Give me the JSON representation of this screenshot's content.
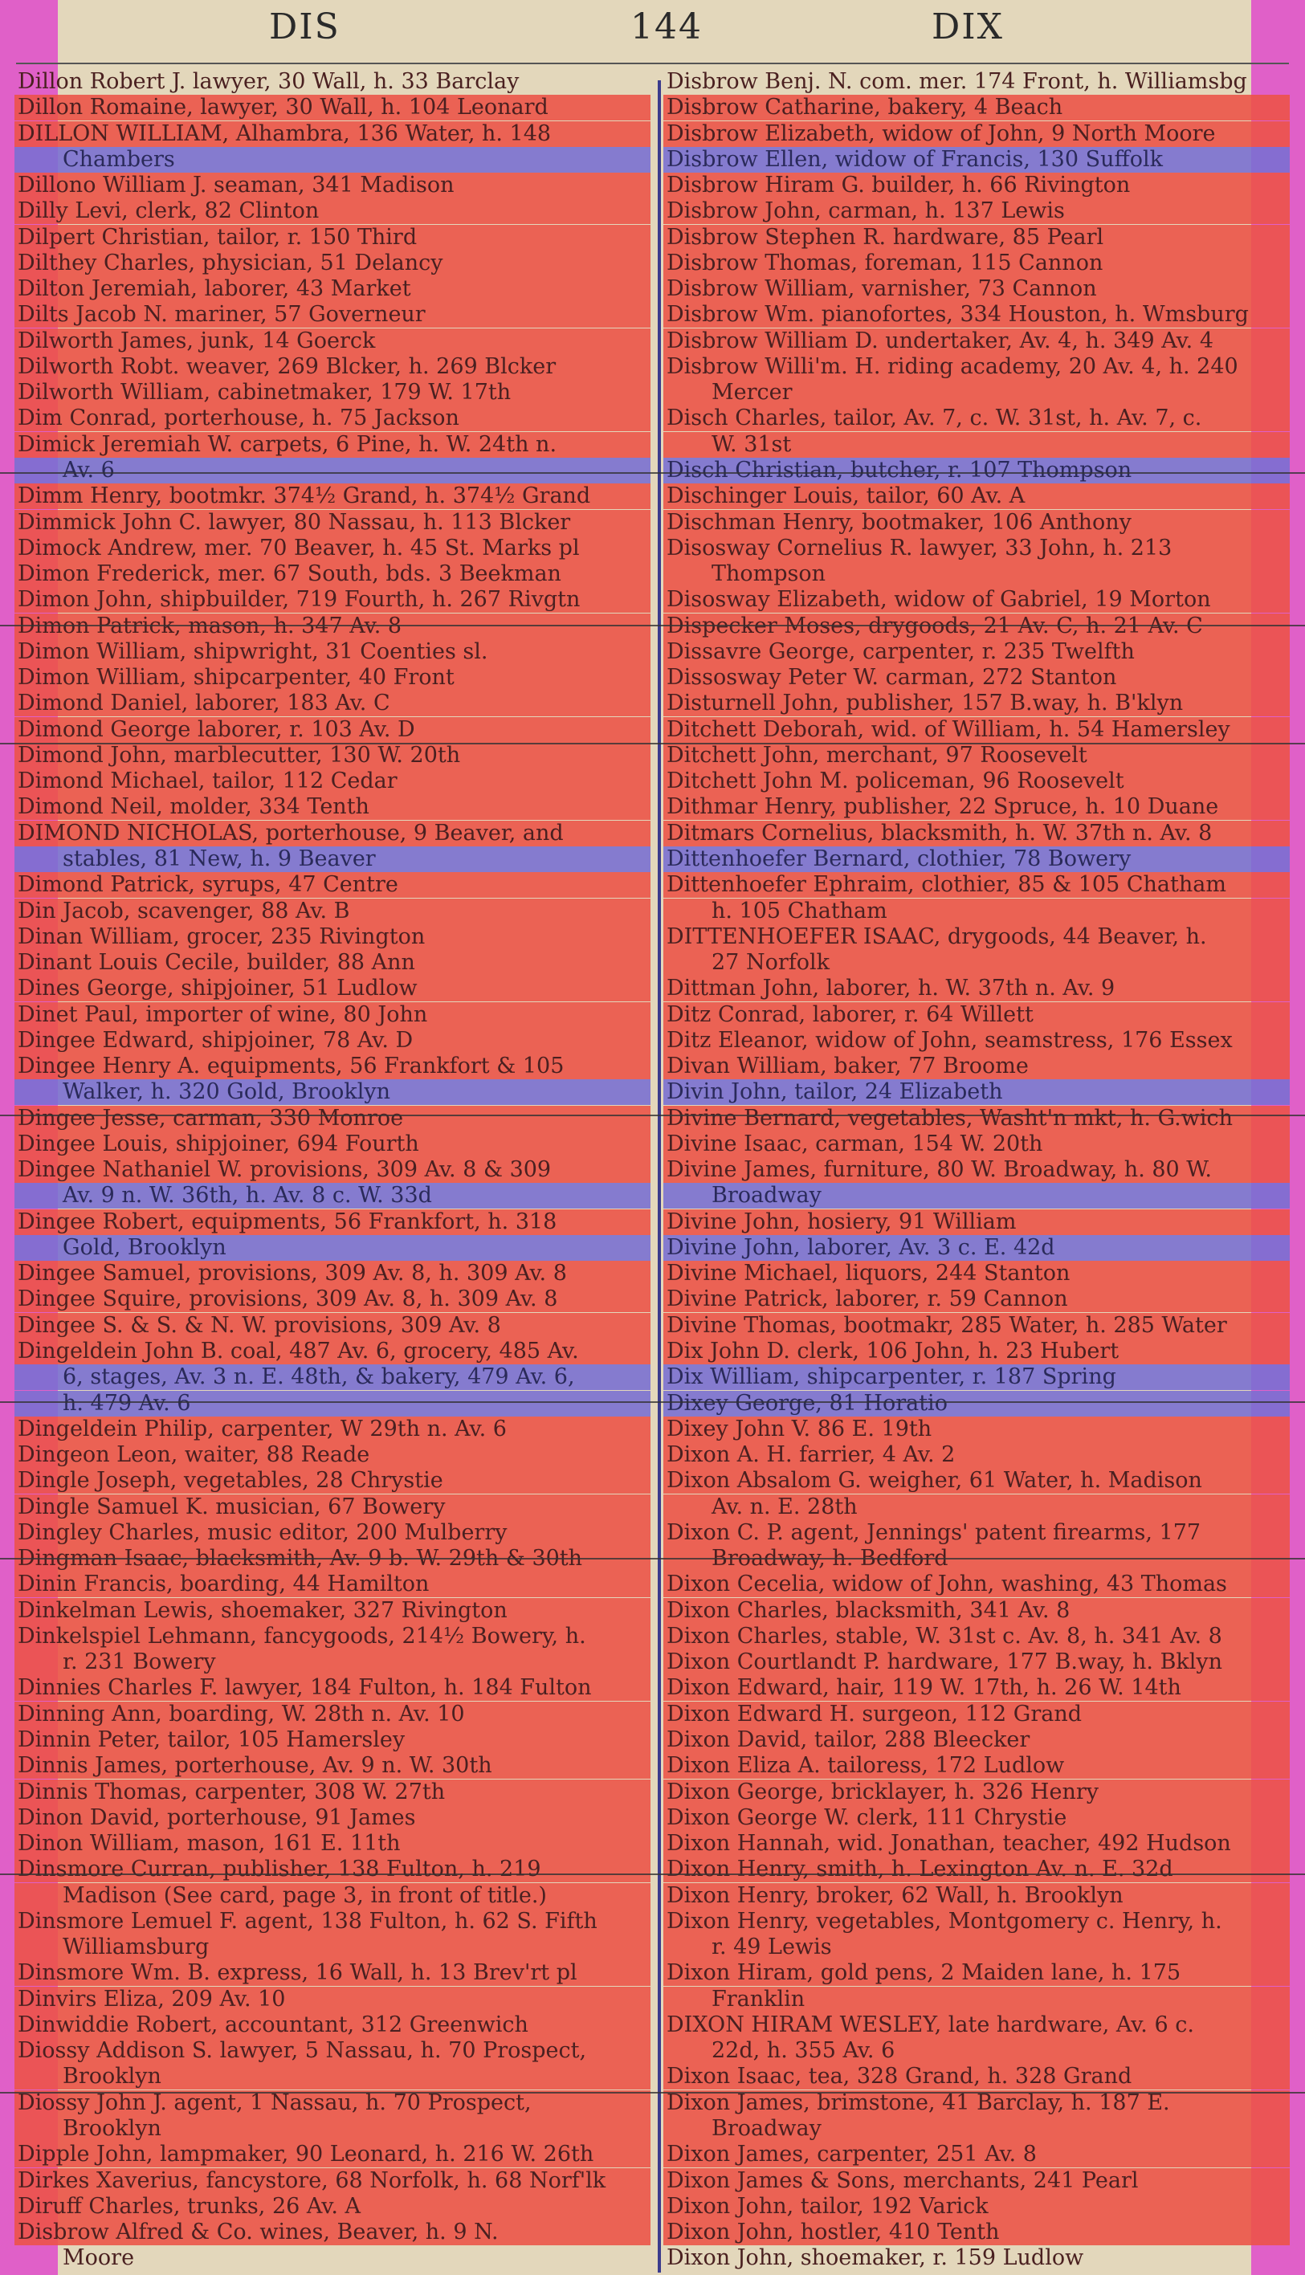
{
  "header": {
    "left": "DIS",
    "page": "144",
    "right": "DIX"
  },
  "left_column": [
    {
      "text": "Dillon Robert J. lawyer, 30 Wall, h. 33 Barclay",
      "hl": "plain",
      "cont": false
    },
    {
      "text": "Dillon Romaine, lawyer, 30 Wall, h. 104 Leonard",
      "hl": "red",
      "cont": false
    },
    {
      "text": "DILLON WILLIAM, Alhambra, 136 Water, h. 148",
      "hl": "red",
      "cont": false
    },
    {
      "text": "Chambers",
      "hl": "blue",
      "cont": true
    },
    {
      "text": "Dillono William J. seaman, 341 Madison",
      "hl": "red",
      "cont": false
    },
    {
      "text": "Dilly Levi, clerk, 82 Clinton",
      "hl": "red",
      "cont": false
    },
    {
      "text": "Dilpert Christian, tailor, r. 150 Third",
      "hl": "red",
      "cont": false
    },
    {
      "text": "Dilthey Charles, physician, 51 Delancy",
      "hl": "red",
      "cont": false
    },
    {
      "text": "Dilton Jeremiah, laborer, 43 Market",
      "hl": "red",
      "cont": false
    },
    {
      "text": "Dilts Jacob N. mariner, 57 Governeur",
      "hl": "red",
      "cont": false
    },
    {
      "text": "Dilworth James, junk, 14 Goerck",
      "hl": "red",
      "cont": false
    },
    {
      "text": "Dilworth Robt. weaver, 269 Blcker, h. 269 Blcker",
      "hl": "red",
      "cont": false
    },
    {
      "text": "Dilworth William, cabinetmaker, 179 W. 17th",
      "hl": "red",
      "cont": false
    },
    {
      "text": "Dim Conrad, porterhouse, h. 75 Jackson",
      "hl": "red",
      "cont": false
    },
    {
      "text": "Dimick Jeremiah W. carpets, 6 Pine, h. W. 24th n.",
      "hl": "red",
      "cont": false
    },
    {
      "text": "Av. 6",
      "hl": "blue",
      "cont": true
    },
    {
      "text": "Dimm Henry, bootmkr. 374½ Grand, h. 374½ Grand",
      "hl": "red",
      "cont": false
    },
    {
      "text": "Dimmick John C. lawyer, 80 Nassau, h. 113 Blcker",
      "hl": "red",
      "cont": false
    },
    {
      "text": "Dimock Andrew, mer. 70 Beaver, h. 45 St. Marks pl",
      "hl": "red",
      "cont": false
    },
    {
      "text": "Dimon Frederick, mer. 67 South, bds. 3 Beekman",
      "hl": "red",
      "cont": false
    },
    {
      "text": "Dimon John, shipbuilder, 719 Fourth, h. 267 Rivgtn",
      "hl": "red",
      "cont": false
    },
    {
      "text": "Dimon Patrick, mason, h. 347 Av. 8",
      "hl": "red",
      "cont": false
    },
    {
      "text": "Dimon William, shipwright, 31 Coenties sl.",
      "hl": "red",
      "cont": false
    },
    {
      "text": "Dimon William, shipcarpenter, 40 Front",
      "hl": "red",
      "cont": false
    },
    {
      "text": "Dimond Daniel, laborer, 183 Av. C",
      "hl": "red",
      "cont": false
    },
    {
      "text": "Dimond George laborer, r. 103 Av. D",
      "hl": "red",
      "cont": false
    },
    {
      "text": "Dimond John, marblecutter, 130 W. 20th",
      "hl": "red",
      "cont": false
    },
    {
      "text": "Dimond Michael, tailor, 112 Cedar",
      "hl": "red",
      "cont": false
    },
    {
      "text": "Dimond Neil, molder, 334 Tenth",
      "hl": "red",
      "cont": false
    },
    {
      "text": "DIMOND NICHOLAS, porterhouse, 9 Beaver, and",
      "hl": "red",
      "cont": false
    },
    {
      "text": "stables, 81 New, h. 9 Beaver",
      "hl": "blue",
      "cont": true
    },
    {
      "text": "Dimond Patrick, syrups, 47 Centre",
      "hl": "red",
      "cont": false
    },
    {
      "text": "Din Jacob, scavenger, 88 Av. B",
      "hl": "red",
      "cont": false
    },
    {
      "text": "Dinan William, grocer, 235 Rivington",
      "hl": "red",
      "cont": false
    },
    {
      "text": "Dinant Louis Cecile, builder, 88 Ann",
      "hl": "red",
      "cont": false
    },
    {
      "text": "Dines George, shipjoiner, 51 Ludlow",
      "hl": "red",
      "cont": false
    },
    {
      "text": "Dinet Paul, importer of wine, 80 John",
      "hl": "red",
      "cont": false
    },
    {
      "text": "Dingee Edward, shipjoiner, 78 Av. D",
      "hl": "red",
      "cont": false
    },
    {
      "text": "Dingee Henry A. equipments, 56 Frankfort & 105",
      "hl": "red",
      "cont": false
    },
    {
      "text": "Walker, h. 320 Gold, Brooklyn",
      "hl": "blue",
      "cont": true
    },
    {
      "text": "Dingee Jesse, carman, 330 Monroe",
      "hl": "red",
      "cont": false
    },
    {
      "text": "Dingee Louis, shipjoiner, 694 Fourth",
      "hl": "red",
      "cont": false
    },
    {
      "text": "Dingee Nathaniel W. provisions, 309 Av. 8 & 309",
      "hl": "red",
      "cont": false
    },
    {
      "text": "Av. 9 n. W. 36th, h. Av. 8 c. W. 33d",
      "hl": "blue",
      "cont": true
    },
    {
      "text": "Dingee Robert, equipments, 56 Frankfort, h. 318",
      "hl": "red",
      "cont": false
    },
    {
      "text": "Gold, Brooklyn",
      "hl": "blue",
      "cont": true
    },
    {
      "text": "Dingee Samuel, provisions, 309 Av. 8, h. 309 Av. 8",
      "hl": "red",
      "cont": false
    },
    {
      "text": "Dingee Squire, provisions, 309 Av. 8, h. 309 Av. 8",
      "hl": "red",
      "cont": false
    },
    {
      "text": "Dingee S. & S. & N. W. provisions, 309 Av. 8",
      "hl": "red",
      "cont": false
    },
    {
      "text": "Dingeldein John B. coal, 487 Av. 6, grocery, 485 Av.",
      "hl": "red",
      "cont": false
    },
    {
      "text": "6, stages, Av. 3 n. E. 48th, & bakery, 479 Av. 6,",
      "hl": "blue",
      "cont": true
    },
    {
      "text": "h. 479 Av. 6",
      "hl": "blue",
      "cont": true
    },
    {
      "text": "Dingeldein Philip, carpenter, W 29th n. Av. 6",
      "hl": "red",
      "cont": false
    },
    {
      "text": "Dingeon Leon, waiter, 88 Reade",
      "hl": "red",
      "cont": false
    },
    {
      "text": "Dingle Joseph, vegetables, 28 Chrystie",
      "hl": "red",
      "cont": false
    },
    {
      "text": "Dingle Samuel K. musician, 67 Bowery",
      "hl": "red",
      "cont": false
    },
    {
      "text": "Dingley Charles, music editor, 200 Mulberry",
      "hl": "red",
      "cont": false
    },
    {
      "text": "Dingman Isaac, blacksmith, Av. 9 b. W. 29th & 30th",
      "hl": "red",
      "cont": false
    },
    {
      "text": "Dinin Francis, boarding, 44 Hamilton",
      "hl": "red",
      "cont": false
    },
    {
      "text": "Dinkelman Lewis, shoemaker, 327 Rivington",
      "hl": "red",
      "cont": false
    },
    {
      "text": "Dinkelspiel Lehmann, fancygoods, 214½ Bowery, h.",
      "hl": "red",
      "cont": false
    },
    {
      "text": "r. 231 Bowery",
      "hl": "red",
      "cont": true
    },
    {
      "text": "Dinnies Charles F. lawyer, 184 Fulton, h. 184 Fulton",
      "hl": "red",
      "cont": false
    },
    {
      "text": "Dinning Ann, boarding, W. 28th n. Av. 10",
      "hl": "red",
      "cont": false
    },
    {
      "text": "Dinnin Peter, tailor, 105 Hamersley",
      "hl": "red",
      "cont": false
    },
    {
      "text": "Dinnis James, porterhouse, Av. 9 n. W. 30th",
      "hl": "red",
      "cont": false
    },
    {
      "text": "Dinnis Thomas, carpenter, 308 W. 27th",
      "hl": "red",
      "cont": false
    },
    {
      "text": "Dinon David, porterhouse, 91 James",
      "hl": "red",
      "cont": false
    },
    {
      "text": "Dinon William, mason, 161 E. 11th",
      "hl": "red",
      "cont": false
    },
    {
      "text": "Dinsmore Curran, publisher, 138 Fulton, h. 219",
      "hl": "red",
      "cont": false
    },
    {
      "text": "Madison (See card, page 3, in front of title.)",
      "hl": "red",
      "cont": true
    },
    {
      "text": "Dinsmore Lemuel F. agent, 138 Fulton, h. 62 S. Fifth",
      "hl": "red",
      "cont": false
    },
    {
      "text": "Williamsburg",
      "hl": "red",
      "cont": true
    },
    {
      "text": "Dinsmore Wm. B. express, 16 Wall, h. 13 Brev'rt pl",
      "hl": "red",
      "cont": false
    },
    {
      "text": "Dinvirs Eliza, 209 Av. 10",
      "hl": "red",
      "cont": false
    },
    {
      "text": "Dinwiddie Robert, accountant, 312 Greenwich",
      "hl": "red",
      "cont": false
    },
    {
      "text": "Diossy Addison S. lawyer, 5 Nassau, h. 70 Prospect,",
      "hl": "red",
      "cont": false
    },
    {
      "text": "Brooklyn",
      "hl": "red",
      "cont": true
    },
    {
      "text": "Diossy John J. agent, 1 Nassau, h. 70 Prospect,",
      "hl": "red",
      "cont": false
    },
    {
      "text": "Brooklyn",
      "hl": "red",
      "cont": true
    },
    {
      "text": "Dipple John, lampmaker, 90 Leonard, h. 216 W. 26th",
      "hl": "red",
      "cont": false
    },
    {
      "text": "Dirkes Xaverius, fancystore, 68 Norfolk, h. 68 Norf'lk",
      "hl": "red",
      "cont": false
    },
    {
      "text": "Diruff Charles, trunks, 26 Av. A",
      "hl": "red",
      "cont": false
    },
    {
      "text": "Disbrow Alfred & Co. wines, Beaver, h. 9 N.",
      "hl": "red",
      "cont": false
    },
    {
      "text": "Moore",
      "hl": "plain",
      "cont": true
    }
  ],
  "right_column": [
    {
      "text": "Disbrow Benj. N. com. mer. 174 Front, h. Williamsbg",
      "hl": "plain",
      "cont": false
    },
    {
      "text": "Disbrow Catharine, bakery, 4 Beach",
      "hl": "red",
      "cont": false
    },
    {
      "text": "Disbrow Elizabeth, widow of John, 9 North Moore",
      "hl": "red",
      "cont": false
    },
    {
      "text": "Disbrow Ellen, widow of Francis, 130 Suffolk",
      "hl": "blue",
      "cont": false
    },
    {
      "text": "Disbrow Hiram G. builder, h. 66 Rivington",
      "hl": "red",
      "cont": false
    },
    {
      "text": "Disbrow John, carman, h. 137 Lewis",
      "hl": "red",
      "cont": false
    },
    {
      "text": "Disbrow Stephen R. hardware, 85 Pearl",
      "hl": "red",
      "cont": false
    },
    {
      "text": "Disbrow Thomas, foreman, 115 Cannon",
      "hl": "red",
      "cont": false
    },
    {
      "text": "Disbrow William, varnisher, 73 Cannon",
      "hl": "red",
      "cont": false
    },
    {
      "text": "Disbrow Wm. pianofortes, 334 Houston, h. Wmsburg",
      "hl": "red",
      "cont": false
    },
    {
      "text": "Disbrow William D. undertaker, Av. 4, h. 349 Av. 4",
      "hl": "red",
      "cont": false
    },
    {
      "text": "Disbrow Willi'm. H. riding academy, 20 Av. 4, h. 240",
      "hl": "red",
      "cont": false
    },
    {
      "text": "Mercer",
      "hl": "red",
      "cont": true
    },
    {
      "text": "Disch Charles, tailor, Av. 7, c. W. 31st, h. Av. 7, c.",
      "hl": "red",
      "cont": false
    },
    {
      "text": "W. 31st",
      "hl": "red",
      "cont": true
    },
    {
      "text": "Disch Christian, butcher, r. 107 Thompson",
      "hl": "blue",
      "cont": false
    },
    {
      "text": "Dischinger Louis, tailor, 60 Av. A",
      "hl": "red",
      "cont": false
    },
    {
      "text": "Dischman Henry, bootmaker, 106 Anthony",
      "hl": "red",
      "cont": false
    },
    {
      "text": "Disosway Cornelius R. lawyer, 33 John, h. 213",
      "hl": "red",
      "cont": false
    },
    {
      "text": "Thompson",
      "hl": "red",
      "cont": true
    },
    {
      "text": "Disosway Elizabeth, widow of Gabriel, 19 Morton",
      "hl": "red",
      "cont": false
    },
    {
      "text": "Dispecker Moses, drygoods, 21 Av. C, h. 21 Av. C",
      "hl": "red",
      "cont": false
    },
    {
      "text": "Dissavre George, carpenter, r. 235 Twelfth",
      "hl": "red",
      "cont": false
    },
    {
      "text": "Dissosway Peter W. carman, 272 Stanton",
      "hl": "red",
      "cont": false
    },
    {
      "text": "Disturnell John, publisher, 157 B.way, h. B'klyn",
      "hl": "red",
      "cont": false
    },
    {
      "text": "Ditchett Deborah, wid. of William, h. 54 Hamersley",
      "hl": "red",
      "cont": false
    },
    {
      "text": "Ditchett John, merchant, 97 Roosevelt",
      "hl": "red",
      "cont": false
    },
    {
      "text": "Ditchett John M. policeman, 96 Roosevelt",
      "hl": "red",
      "cont": false
    },
    {
      "text": "Dithmar Henry, publisher, 22 Spruce, h. 10 Duane",
      "hl": "red",
      "cont": false
    },
    {
      "text": "Ditmars Cornelius, blacksmith, h. W. 37th n. Av. 8",
      "hl": "red",
      "cont": false
    },
    {
      "text": "Dittenhoefer Bernard, clothier, 78 Bowery",
      "hl": "blue",
      "cont": false
    },
    {
      "text": "Dittenhoefer Ephraim, clothier, 85 & 105 Chatham",
      "hl": "red",
      "cont": false
    },
    {
      "text": "h. 105 Chatham",
      "hl": "red",
      "cont": true
    },
    {
      "text": "DITTENHOEFER ISAAC, drygoods, 44 Beaver, h.",
      "hl": "red",
      "cont": false
    },
    {
      "text": "27 Norfolk",
      "hl": "red",
      "cont": true
    },
    {
      "text": "Dittman John, laborer, h. W. 37th n. Av. 9",
      "hl": "red",
      "cont": false
    },
    {
      "text": "Ditz Conrad, laborer, r. 64 Willett",
      "hl": "red",
      "cont": false
    },
    {
      "text": "Ditz Eleanor, widow of John, seamstress, 176 Essex",
      "hl": "red",
      "cont": false
    },
    {
      "text": "Divan William, baker, 77 Broome",
      "hl": "red",
      "cont": false
    },
    {
      "text": "Divin John, tailor, 24 Elizabeth",
      "hl": "blue",
      "cont": false
    },
    {
      "text": "Divine Bernard, vegetables, Washt'n mkt, h. G.wich",
      "hl": "red",
      "cont": false
    },
    {
      "text": "Divine Isaac, carman, 154 W. 20th",
      "hl": "red",
      "cont": false
    },
    {
      "text": "Divine James, furniture, 80 W. Broadway, h. 80 W.",
      "hl": "red",
      "cont": false
    },
    {
      "text": "Broadway",
      "hl": "blue",
      "cont": true
    },
    {
      "text": "Divine John, hosiery, 91 William",
      "hl": "red",
      "cont": false
    },
    {
      "text": "Divine John, laborer, Av. 3 c. E. 42d",
      "hl": "blue",
      "cont": false
    },
    {
      "text": "Divine Michael, liquors, 244 Stanton",
      "hl": "red",
      "cont": false
    },
    {
      "text": "Divine Patrick, laborer, r. 59 Cannon",
      "hl": "red",
      "cont": false
    },
    {
      "text": "Divine Thomas, bootmakr, 285 Water, h. 285 Water",
      "hl": "red",
      "cont": false
    },
    {
      "text": "Dix John D. clerk, 106 John, h. 23 Hubert",
      "hl": "red",
      "cont": false
    },
    {
      "text": "Dix William, shipcarpenter, r. 187 Spring",
      "hl": "blue",
      "cont": false
    },
    {
      "text": "Dixey George, 81 Horatio",
      "hl": "blue",
      "cont": false
    },
    {
      "text": "Dixey John V. 86 E. 19th",
      "hl": "red",
      "cont": false
    },
    {
      "text": "Dixon A. H. farrier, 4 Av. 2",
      "hl": "red",
      "cont": false
    },
    {
      "text": "Dixon Absalom G. weigher, 61 Water, h. Madison",
      "hl": "red",
      "cont": false
    },
    {
      "text": "Av. n. E. 28th",
      "hl": "red",
      "cont": true
    },
    {
      "text": "Dixon C. P. agent, Jennings' patent firearms, 177",
      "hl": "red",
      "cont": false
    },
    {
      "text": "Broadway, h. Bedford",
      "hl": "red",
      "cont": true
    },
    {
      "text": "Dixon Cecelia, widow of John, washing, 43 Thomas",
      "hl": "red",
      "cont": false
    },
    {
      "text": "Dixon Charles, blacksmith, 341 Av. 8",
      "hl": "red",
      "cont": false
    },
    {
      "text": "Dixon Charles, stable, W. 31st c. Av. 8, h. 341 Av. 8",
      "hl": "red",
      "cont": false
    },
    {
      "text": "Dixon Courtlandt P. hardware, 177 B.way, h. Bklyn",
      "hl": "red",
      "cont": false
    },
    {
      "text": "Dixon Edward, hair, 119 W. 17th, h. 26 W. 14th",
      "hl": "red",
      "cont": false
    },
    {
      "text": "Dixon Edward H. surgeon, 112 Grand",
      "hl": "red",
      "cont": false
    },
    {
      "text": "Dixon David, tailor, 288 Bleecker",
      "hl": "red",
      "cont": false
    },
    {
      "text": "Dixon Eliza A. tailoress, 172 Ludlow",
      "hl": "red",
      "cont": false
    },
    {
      "text": "Dixon George, bricklayer, h. 326 Henry",
      "hl": "red",
      "cont": false
    },
    {
      "text": "Dixon George W. clerk, 111 Chrystie",
      "hl": "red",
      "cont": false
    },
    {
      "text": "Dixon Hannah, wid. Jonathan, teacher, 492 Hudson",
      "hl": "red",
      "cont": false
    },
    {
      "text": "Dixon Henry, smith, h. Lexington Av. n. E. 32d",
      "hl": "red",
      "cont": false
    },
    {
      "text": "Dixon Henry, broker, 62 Wall, h. Brooklyn",
      "hl": "red",
      "cont": false
    },
    {
      "text": "Dixon Henry, vegetables, Montgomery c. Henry, h.",
      "hl": "red",
      "cont": false
    },
    {
      "text": "r. 49 Lewis",
      "hl": "red",
      "cont": true
    },
    {
      "text": "Dixon Hiram, gold pens, 2 Maiden lane, h. 175",
      "hl": "red",
      "cont": false
    },
    {
      "text": "Franklin",
      "hl": "red",
      "cont": true
    },
    {
      "text": "DIXON HIRAM WESLEY, late hardware, Av. 6 c.",
      "hl": "red",
      "cont": false
    },
    {
      "text": "22d, h. 355 Av. 6",
      "hl": "red",
      "cont": true
    },
    {
      "text": "Dixon Isaac, tea, 328 Grand, h. 328 Grand",
      "hl": "red",
      "cont": false
    },
    {
      "text": "Dixon James, brimstone, 41 Barclay, h. 187 E.",
      "hl": "red",
      "cont": false
    },
    {
      "text": "Broadway",
      "hl": "red",
      "cont": true
    },
    {
      "text": "Dixon James, carpenter, 251 Av. 8",
      "hl": "red",
      "cont": false
    },
    {
      "text": "Dixon James & Sons, merchants, 241 Pearl",
      "hl": "red",
      "cont": false
    },
    {
      "text": "Dixon John, tailor, 192 Varick",
      "hl": "red",
      "cont": false
    },
    {
      "text": "Dixon John, hostler, 410 Tenth",
      "hl": "red",
      "cont": false
    },
    {
      "text": "Dixon John, shoemaker, r. 159 Ludlow",
      "hl": "plain",
      "cont": false
    }
  ]
}
